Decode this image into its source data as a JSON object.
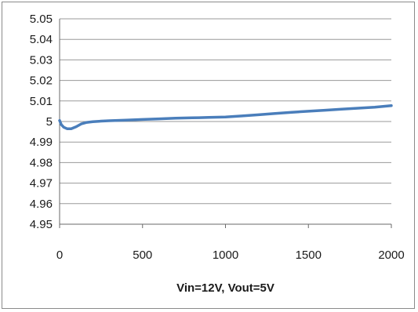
{
  "chart_data": {
    "type": "line",
    "title": "",
    "xlabel": "Vin=12V, Vout=5V",
    "ylabel": "",
    "xlim": [
      0,
      2000
    ],
    "ylim": [
      4.95,
      5.05
    ],
    "x_ticks": [
      "0",
      "500",
      "1000",
      "1500",
      "2000"
    ],
    "y_ticks": [
      "5.05",
      "5.04",
      "5.03",
      "5.02",
      "5.01",
      "5",
      "4.99",
      "4.98",
      "4.97",
      "4.96",
      "4.95"
    ],
    "grid": true,
    "legend": "none",
    "series": [
      {
        "color": "#4a7ebb",
        "x": [
          0,
          10,
          25,
          45,
          70,
          100,
          130,
          160,
          200,
          250,
          300,
          400,
          500,
          600,
          700,
          800,
          900,
          1000,
          1100,
          1200,
          1300,
          1400,
          1500,
          1600,
          1700,
          1800,
          1900,
          2000
        ],
        "y": [
          5.0005,
          4.9985,
          4.9972,
          4.9965,
          4.9965,
          4.9975,
          4.9988,
          4.9995,
          4.9999,
          5.0002,
          5.0004,
          5.0007,
          5.001,
          5.0013,
          5.0016,
          5.0018,
          5.002,
          5.0022,
          5.0027,
          5.0033,
          5.0039,
          5.0045,
          5.005,
          5.0055,
          5.006,
          5.0065,
          5.007,
          5.0077
        ]
      }
    ]
  }
}
